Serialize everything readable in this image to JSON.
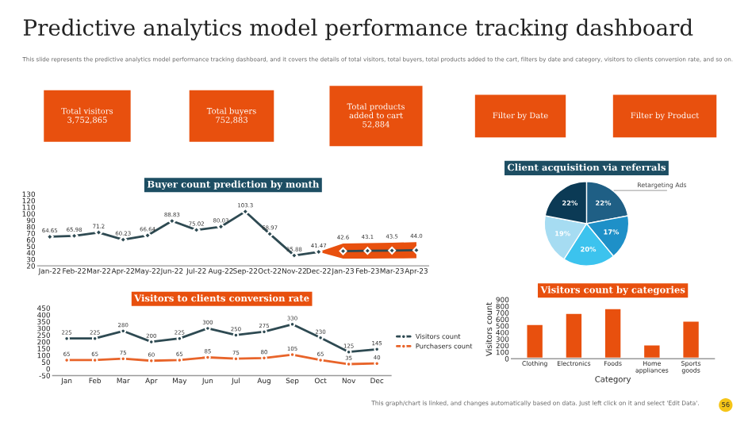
{
  "chart_data": [
    {
      "type": "other",
      "title": "Predictive analytics model performance tracking dashboard",
      "subtitle": "This slide represents the predictive analytics model performance tracking dashboard, and it covers the details of total visitors, total buyers, total products added to the cart, filters by date and category, visitors to clients conversion rate, and so on.",
      "annotations": [
        "Total visitors\n3,752,865",
        "Total buyers\n752,883",
        "Total products\nadded to cart\n52,884",
        "Filter by Date",
        "Filter by Product"
      ]
    },
    {
      "type": "line",
      "title": "Buyer count prediction by month",
      "categories": [
        "Jan-22",
        "Feb-22",
        "Mar-22",
        "Apr-22",
        "May-22",
        "Jun-22",
        "Jul-22",
        "Aug-22",
        "Sep-22",
        "Oct-22",
        "Nov-22",
        "Dec-22",
        "Jan-23",
        "Feb-23",
        "Mar-23",
        "Apr-23"
      ],
      "series": [
        {
          "color": "#2e4a52",
          "values": [
            64.65,
            65.98,
            71.2,
            60.23,
            66.64,
            88.83,
            75.02,
            80.03,
            103.3,
            68.97,
            35.88,
            41.47,
            null,
            null,
            null,
            null
          ]
        },
        {
          "color": "#2e4a52",
          "values": [
            null,
            null,
            null,
            null,
            null,
            null,
            null,
            null,
            null,
            null,
            null,
            null,
            42.6,
            43.1,
            43.5,
            44.0
          ],
          "value_labels": [
            null,
            null,
            null,
            null,
            null,
            null,
            null,
            null,
            null,
            null,
            null,
            null,
            "42.6",
            "43.1",
            "43.5",
            "44.0"
          ],
          "lower": [
            null,
            null,
            null,
            null,
            null,
            null,
            null,
            null,
            null,
            null,
            null,
            41.47,
            31.0,
            31.2,
            31.4,
            31.7
          ],
          "upper": [
            null,
            null,
            null,
            null,
            null,
            null,
            null,
            null,
            null,
            null,
            null,
            41.47,
            54.2,
            55.0,
            55.6,
            56.3
          ]
        }
      ],
      "ylim": [
        20,
        130
      ],
      "yticks": [
        20,
        30,
        40,
        50,
        60,
        70,
        80,
        90,
        100,
        110,
        120,
        130
      ],
      "marker": "diamond",
      "data_labels": true,
      "grid": false
    },
    {
      "type": "pie",
      "title": "Client acquisition via referrals",
      "categories": [
        "Retargeting Ads",
        null,
        null,
        null,
        null
      ],
      "values": [
        22,
        17,
        20,
        19,
        22
      ],
      "value_labels": [
        "22%",
        "17%",
        "20%",
        "19%",
        "22%"
      ],
      "colors": [
        "#1f5f85",
        "#1e90c8",
        "#3cc3ee",
        "#a6dcf2",
        "#0b3a55"
      ],
      "data_labels": true
    },
    {
      "type": "line",
      "title": "Visitors to clients conversion rate",
      "categories": [
        "Jan",
        "Feb",
        "Mar",
        "Apr",
        "May",
        "Jun",
        "Jul",
        "Aug",
        "Sep",
        "Oct",
        "Nov",
        "Dec"
      ],
      "series": [
        {
          "name": "Visitors count",
          "color": "#2e4a52",
          "values": [
            225,
            225,
            280,
            200,
            225,
            300,
            250,
            275,
            330,
            230,
            125,
            145
          ]
        },
        {
          "name": "Purchasers count",
          "color": "#e8642a",
          "values": [
            65,
            65,
            75,
            60,
            65,
            85,
            75,
            80,
            105,
            65,
            35,
            40
          ]
        }
      ],
      "ylim": [
        -50,
        450
      ],
      "yticks": [
        -50,
        0,
        50,
        100,
        150,
        200,
        250,
        300,
        350,
        400,
        450
      ],
      "marker": "circle",
      "data_labels": true,
      "legend": "right",
      "grid": false,
      "annotations": [
        "This graph/chart is linked, and changes automatically based on data. Just left click on it and select 'Edit Data'."
      ]
    },
    {
      "type": "bar",
      "title": "Visitors count by categories",
      "xlabel": "Category",
      "ylabel": "Visitors count",
      "categories": [
        "Clothing",
        "Electronics",
        "Foods",
        "Home appliances",
        "Sports goods"
      ],
      "values": [
        530,
        700,
        770,
        220,
        580
      ],
      "color": "#e8500e",
      "ylim": [
        0,
        900
      ],
      "yticks": [
        0,
        100,
        200,
        300,
        400,
        500,
        600,
        700,
        800,
        900
      ],
      "grid": false,
      "annotations": [
        "56"
      ]
    }
  ]
}
